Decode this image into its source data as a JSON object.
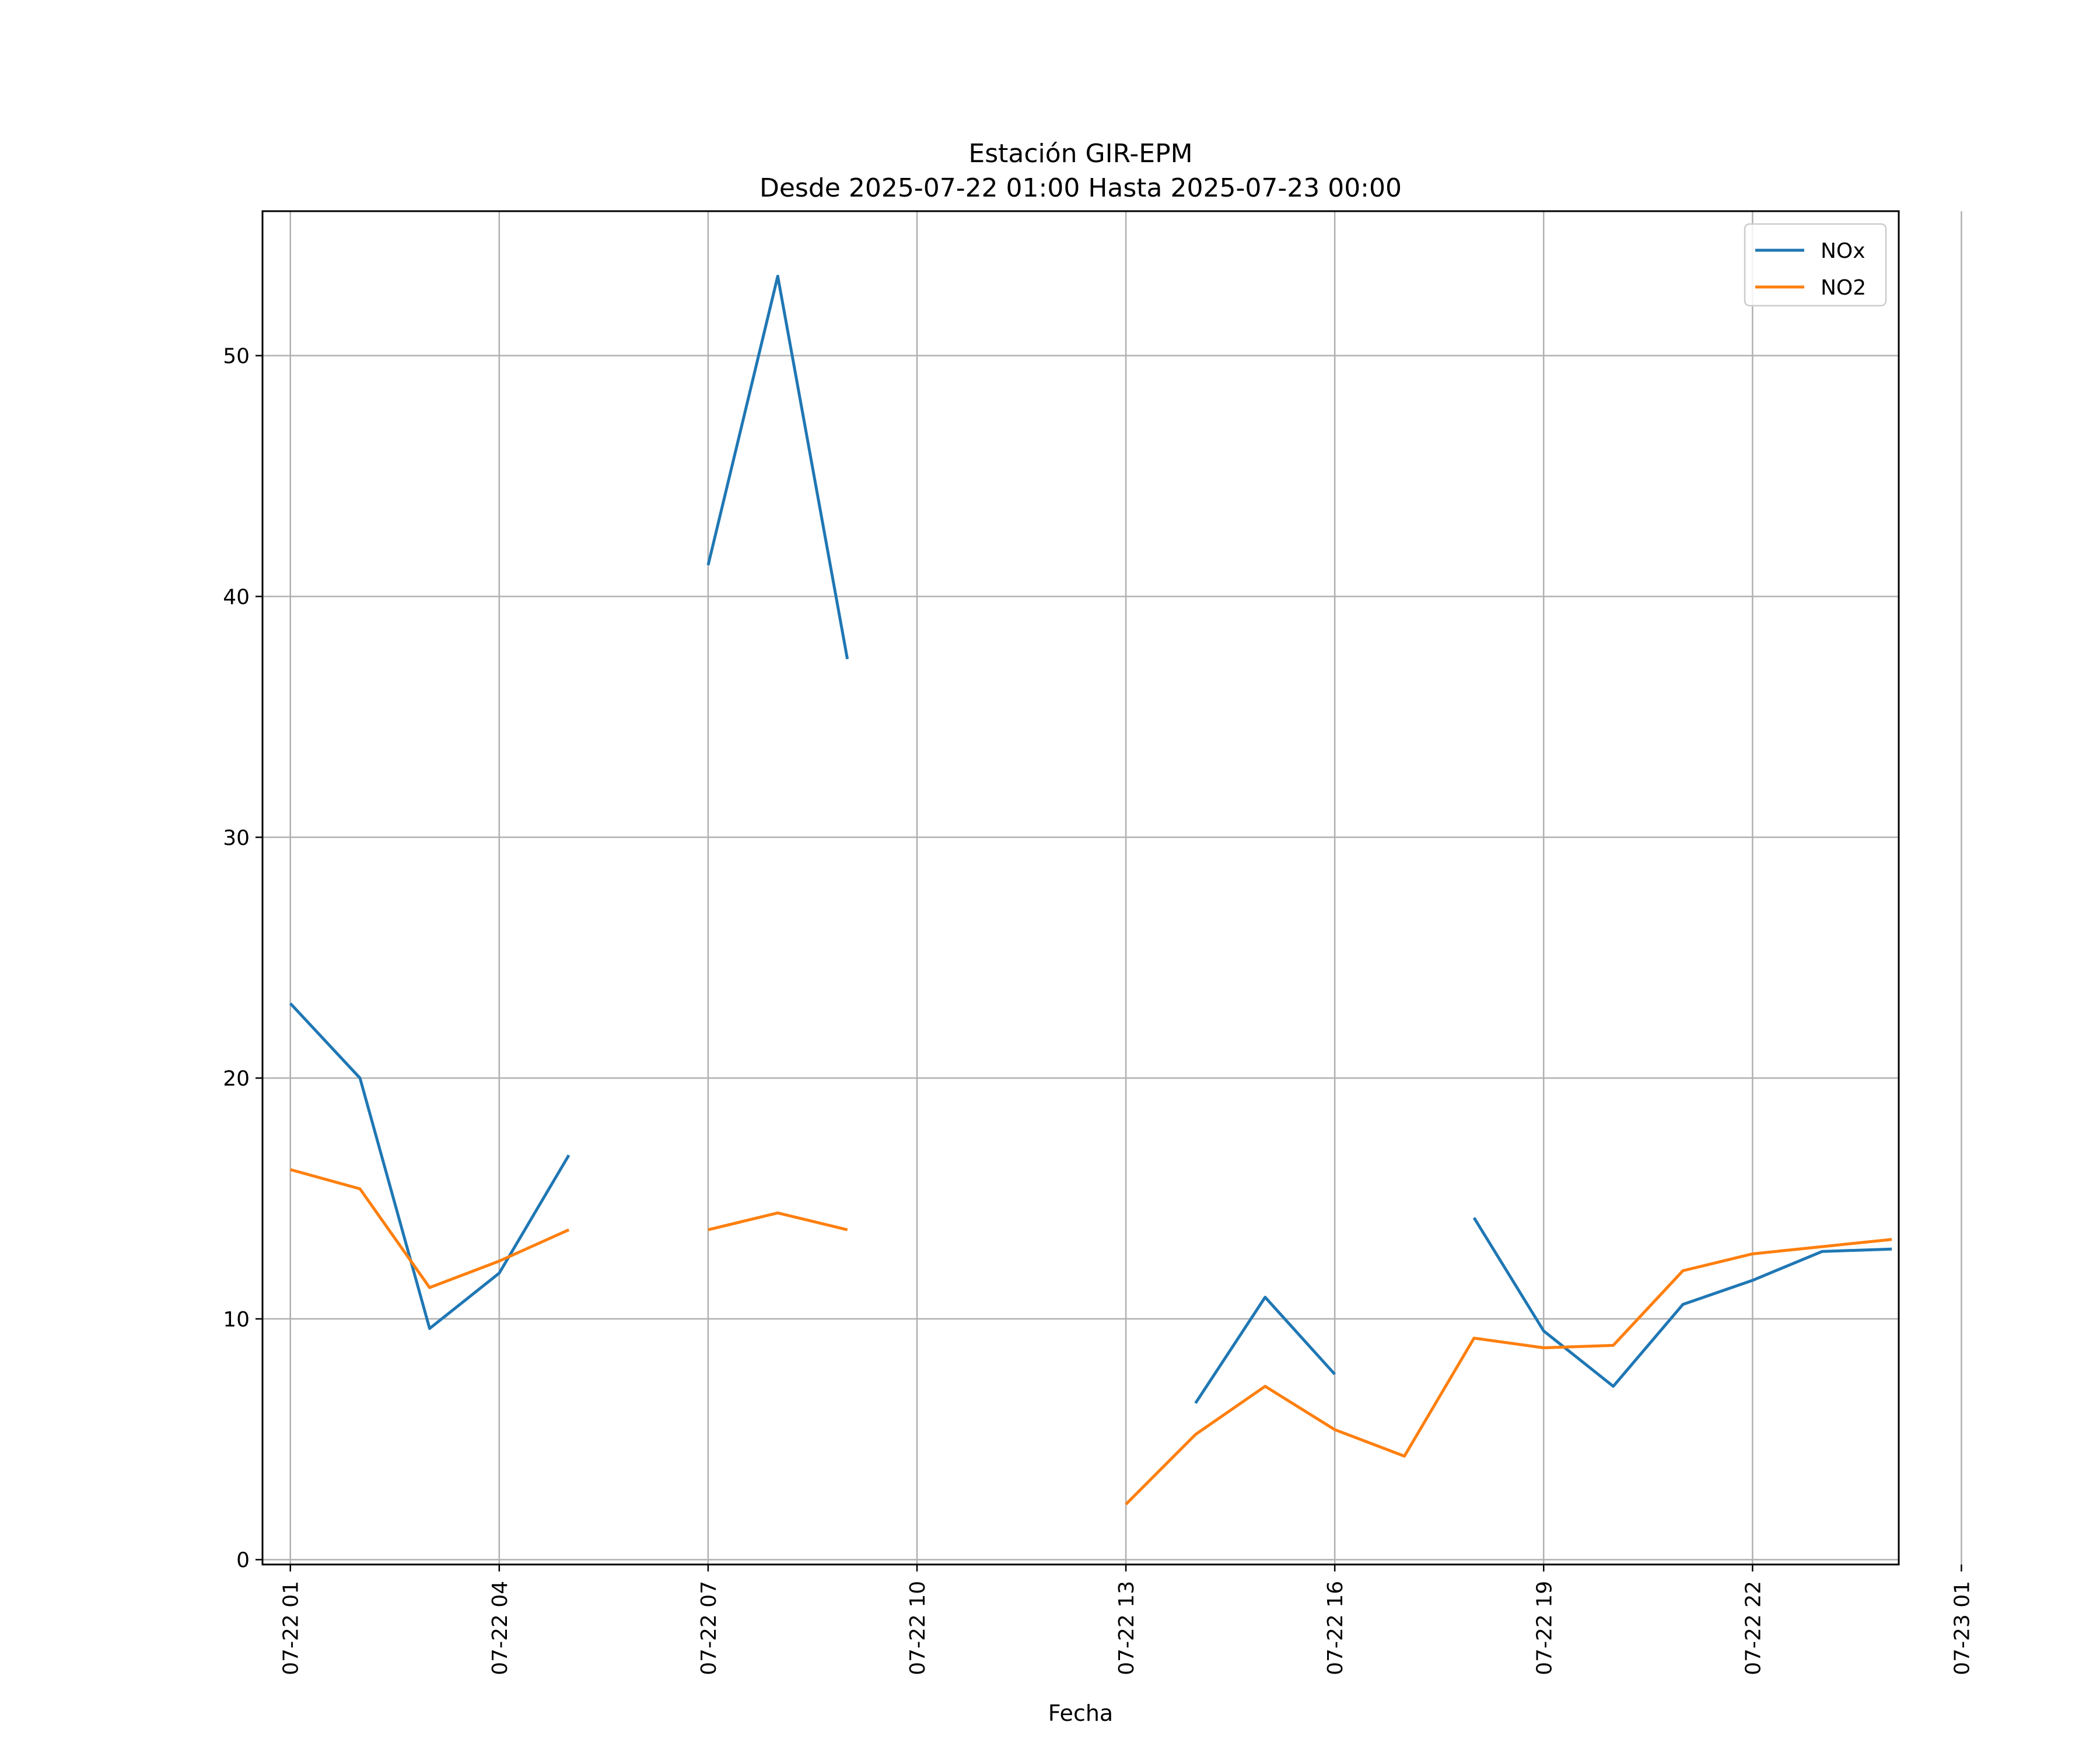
{
  "chart_data": {
    "type": "line",
    "title": "Estación GIR-EPM",
    "subtitle": "Desde 2025-07-22 01:00 Hasta 2025-07-23 00:00",
    "xlabel": "Fecha",
    "ylabel": "",
    "xlim": [
      0.6,
      24.1
    ],
    "ylim": [
      -0.2,
      56.0
    ],
    "yticks": [
      0,
      10,
      20,
      30,
      40,
      50
    ],
    "xticks": [
      {
        "x": 1,
        "label": "07-22 01"
      },
      {
        "x": 4,
        "label": "07-22 04"
      },
      {
        "x": 7,
        "label": "07-22 07"
      },
      {
        "x": 10,
        "label": "07-22 10"
      },
      {
        "x": 13,
        "label": "07-22 13"
      },
      {
        "x": 16,
        "label": "07-22 16"
      },
      {
        "x": 19,
        "label": "07-22 19"
      },
      {
        "x": 22,
        "label": "07-22 22"
      },
      {
        "x": 25,
        "label": "07-23 01"
      }
    ],
    "grid": true,
    "legend_position": "top-right",
    "x": [
      "07-22 01",
      "07-22 02",
      "07-22 03",
      "07-22 04",
      "07-22 05",
      "07-22 06",
      "07-22 07",
      "07-22 08",
      "07-22 09",
      "07-22 10",
      "07-22 11",
      "07-22 12",
      "07-22 13",
      "07-22 14",
      "07-22 15",
      "07-22 16",
      "07-22 17",
      "07-22 18",
      "07-22 19",
      "07-22 20",
      "07-22 21",
      "07-22 22",
      "07-22 23",
      "07-23 00"
    ],
    "series": [
      {
        "name": "NOx",
        "color": "#1f77b4",
        "values": [
          23.1,
          20.0,
          9.6,
          11.9,
          16.8,
          null,
          41.3,
          53.3,
          37.4,
          null,
          null,
          null,
          null,
          6.5,
          10.9,
          7.7,
          null,
          14.2,
          9.5,
          7.2,
          10.6,
          11.6,
          12.8,
          12.9
        ]
      },
      {
        "name": "NO2",
        "color": "#ff7f0e",
        "values": [
          16.2,
          15.4,
          11.3,
          12.4,
          13.7,
          null,
          13.7,
          14.4,
          13.7,
          null,
          null,
          null,
          2.3,
          5.2,
          7.2,
          5.4,
          4.3,
          9.2,
          8.8,
          8.9,
          12.0,
          12.7,
          13.0,
          13.3
        ]
      }
    ]
  }
}
